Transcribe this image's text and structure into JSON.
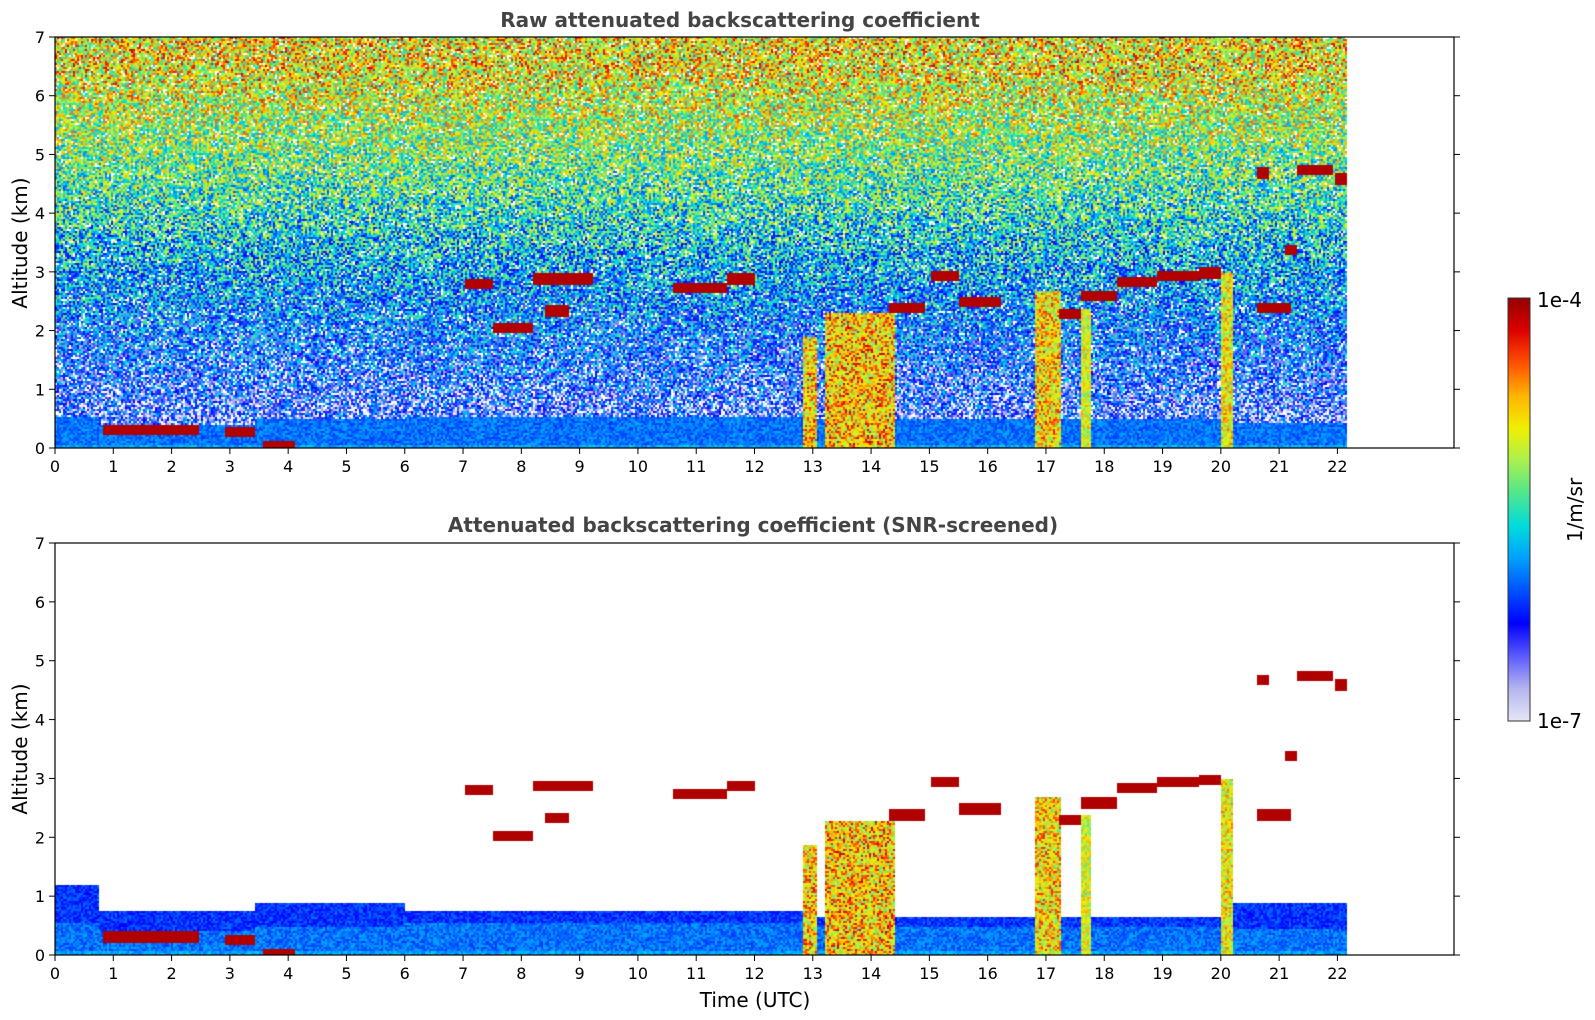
{
  "chart_data": [
    {
      "type": "heatmap",
      "title": "Raw attenuated backscattering coefficient",
      "xlabel": "",
      "ylabel": "Altitude (km)",
      "xlim": [
        0,
        24
      ],
      "ylim": [
        0,
        7
      ],
      "x_ticks": [
        "0",
        "1",
        "2",
        "3",
        "4",
        "5",
        "6",
        "7",
        "8",
        "9",
        "10",
        "11",
        "12",
        "13",
        "14",
        "15",
        "16",
        "17",
        "18",
        "19",
        "20",
        "21",
        "22"
      ],
      "y_ticks": [
        "0",
        "1",
        "2",
        "3",
        "4",
        "5",
        "6",
        "7"
      ],
      "data_end_time": 22.15,
      "boundary_layer": [
        {
          "x": [
            0.0,
            0.75
          ],
          "top": 0.55
        },
        {
          "x": [
            0.75,
            3.4
          ],
          "top": 0.42
        },
        {
          "x": [
            3.4,
            6.0
          ],
          "top": 0.5
        },
        {
          "x": [
            6.0,
            12.8
          ],
          "top": 0.55
        },
        {
          "x": [
            12.8,
            20.0
          ],
          "top": 0.5
        },
        {
          "x": [
            20.0,
            22.15
          ],
          "top": 0.45
        }
      ],
      "cloud_layers": [
        {
          "x": [
            0.8,
            2.45
          ],
          "y": 0.32,
          "strength": 1.0
        },
        {
          "x": [
            2.9,
            3.4
          ],
          "y": 0.28,
          "strength": 1.0
        },
        {
          "x": [
            3.55,
            4.1
          ],
          "y": 0.03,
          "strength": 1.0
        },
        {
          "x": [
            7.0,
            7.5
          ],
          "y": 2.82,
          "strength": 1.0
        },
        {
          "x": [
            7.5,
            8.2
          ],
          "y": 2.05,
          "strength": 0.9
        },
        {
          "x": [
            8.2,
            9.2
          ],
          "y": 2.9,
          "strength": 1.0
        },
        {
          "x": [
            8.4,
            8.8
          ],
          "y": 2.35,
          "strength": 0.9
        },
        {
          "x": [
            10.6,
            11.5
          ],
          "y": 2.75,
          "strength": 1.0
        },
        {
          "x": [
            11.5,
            12.0
          ],
          "y": 2.9,
          "strength": 0.9
        },
        {
          "x": [
            14.3,
            14.9
          ],
          "y": 2.4,
          "strength": 1.0
        },
        {
          "x": [
            15.0,
            15.5
          ],
          "y": 2.95,
          "strength": 1.0
        },
        {
          "x": [
            15.5,
            16.2
          ],
          "y": 2.5,
          "strength": 0.9
        },
        {
          "x": [
            17.2,
            17.6
          ],
          "y": 2.3,
          "strength": 1.0
        },
        {
          "x": [
            17.6,
            18.2
          ],
          "y": 2.6,
          "strength": 1.0
        },
        {
          "x": [
            18.2,
            18.9
          ],
          "y": 2.85,
          "strength": 1.0
        },
        {
          "x": [
            18.9,
            19.6
          ],
          "y": 2.95,
          "strength": 1.0
        },
        {
          "x": [
            19.6,
            20.0
          ],
          "y": 3.0,
          "strength": 0.9
        },
        {
          "x": [
            20.6,
            21.2
          ],
          "y": 2.4,
          "strength": 1.0
        },
        {
          "x": [
            20.6,
            20.8
          ],
          "y": 4.7,
          "strength": 1.0
        },
        {
          "x": [
            21.3,
            21.9
          ],
          "y": 4.75,
          "strength": 1.0
        },
        {
          "x": [
            21.95,
            22.15
          ],
          "y": 4.6,
          "strength": 1.0
        },
        {
          "x": [
            21.1,
            21.3
          ],
          "y": 3.4,
          "strength": 0.8
        }
      ],
      "precipitation": [
        {
          "x": [
            12.8,
            13.05
          ],
          "top": 1.9,
          "strength": 0.9
        },
        {
          "x": [
            13.2,
            14.4
          ],
          "top": 2.3,
          "strength": 0.95
        },
        {
          "x": [
            16.8,
            17.25
          ],
          "top": 2.7,
          "strength": 0.85
        },
        {
          "x": [
            17.6,
            17.75
          ],
          "top": 2.4,
          "strength": 0.6
        },
        {
          "x": [
            20.0,
            20.2
          ],
          "top": 3.0,
          "strength": 0.7
        }
      ]
    },
    {
      "type": "heatmap",
      "title": "Attenuated backscattering coefficient (SNR-screened)",
      "xlabel": "Time (UTC)",
      "ylabel": "Altitude (km)",
      "xlim": [
        0,
        24
      ],
      "ylim": [
        0,
        7
      ],
      "x_ticks": [
        "0",
        "1",
        "2",
        "3",
        "4",
        "5",
        "6",
        "7",
        "8",
        "9",
        "10",
        "11",
        "12",
        "13",
        "14",
        "15",
        "16",
        "17",
        "18",
        "19",
        "20",
        "21",
        "22"
      ],
      "y_ticks": [
        "0",
        "1",
        "2",
        "3",
        "4",
        "5",
        "6",
        "7"
      ],
      "data_end_time": 22.15,
      "screened_layer_top": [
        {
          "x": [
            0.0,
            0.75
          ],
          "top": 1.2
        },
        {
          "x": [
            0.75,
            3.4
          ],
          "top": 0.75
        },
        {
          "x": [
            3.4,
            6.0
          ],
          "top": 0.9
        },
        {
          "x": [
            6.0,
            12.8
          ],
          "top": 0.75
        },
        {
          "x": [
            12.8,
            20.0
          ],
          "top": 0.65
        },
        {
          "x": [
            20.0,
            22.15
          ],
          "top": 0.9
        }
      ]
    }
  ],
  "colorbar": {
    "label": "1/m/sr",
    "max_label": "1e-4",
    "min_label": "1e-7",
    "colormap": [
      "#e6e6f5",
      "#b4b4f0",
      "#5a5aff",
      "#0000ff",
      "#0050ff",
      "#00a0ff",
      "#00dcdc",
      "#50e68c",
      "#aaf050",
      "#f0f000",
      "#ffb400",
      "#ff5000",
      "#dc0000",
      "#960000"
    ]
  }
}
